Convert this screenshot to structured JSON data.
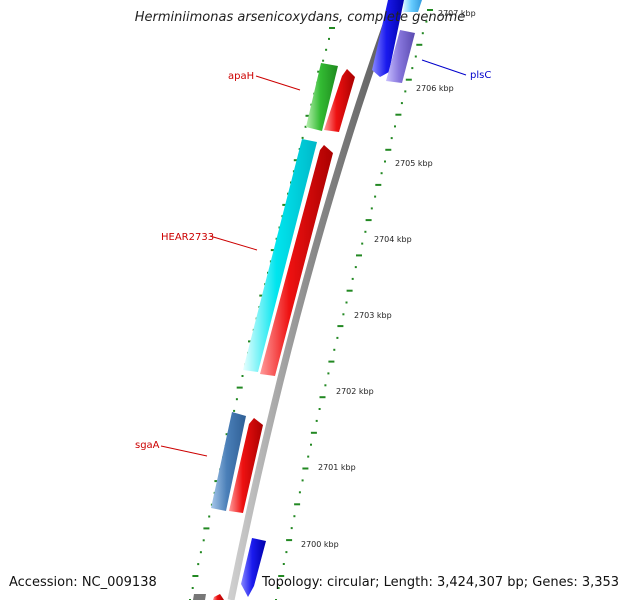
{
  "title": "Herminiimonas arsenicoxydans, complete genome",
  "footer": {
    "accession": "Accession: NC_009138",
    "topology": "Topology: circular; Length: 3,424,307 bp; Genes: 3,353"
  },
  "kbp_ticks": [
    {
      "label": "2707 kbp"
    },
    {
      "label": "2706 kbp"
    },
    {
      "label": "2705 kbp"
    },
    {
      "label": "2704 kbp"
    },
    {
      "label": "2703 kbp"
    },
    {
      "label": "2702 kbp"
    },
    {
      "label": "2701 kbp"
    },
    {
      "label": "2700 kbp"
    }
  ],
  "genes": [
    {
      "name": "apaH",
      "color": "#cc0000"
    },
    {
      "name": "HEAR2733",
      "color": "#cc0000"
    },
    {
      "name": "sgaA",
      "color": "#cc0000"
    },
    {
      "name": "plsC",
      "color": "#0000cc"
    }
  ],
  "feature_colors": {
    "green": "#33bb33",
    "cyan": "#00e5ee",
    "red": "#ee1111",
    "steelblue": "#4a7fb8",
    "blue": "#1a1aee",
    "lightblue": "#66ccff",
    "purple": "#8877dd",
    "backbone": "#8a8a8a",
    "tick_green": "#228822"
  }
}
